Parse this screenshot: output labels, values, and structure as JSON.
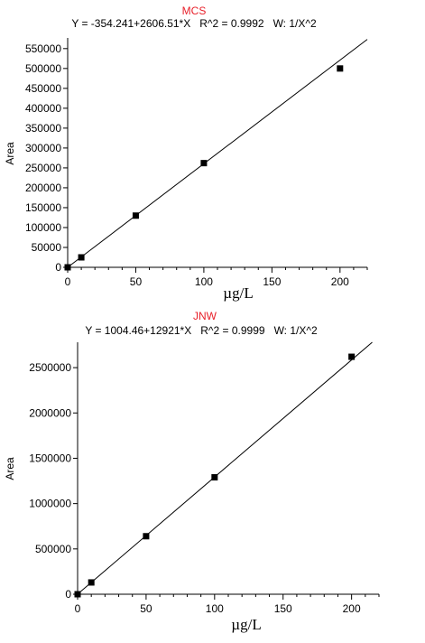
{
  "chart_data": [
    {
      "type": "scatter",
      "title": "MCS",
      "subtitle": "Y = -354.241+2606.51*X   R^2 = 0.9992   W: 1/X^2",
      "xlabel": "µg/L",
      "ylabel": "Area",
      "xlim": [
        0,
        220
      ],
      "ylim": [
        0,
        570000
      ],
      "xticks": [
        0,
        50,
        100,
        150,
        200
      ],
      "yticks": [
        0,
        50000,
        100000,
        150000,
        200000,
        250000,
        300000,
        350000,
        400000,
        450000,
        500000,
        550000
      ],
      "fit": {
        "intercept": -354.241,
        "slope": 2606.51
      },
      "points": [
        {
          "x": 0,
          "y": 0
        },
        {
          "x": 10,
          "y": 25000
        },
        {
          "x": 50,
          "y": 130000
        },
        {
          "x": 100,
          "y": 262000
        },
        {
          "x": 200,
          "y": 500000
        }
      ],
      "grid": false,
      "colors": {
        "title": "#e8202a",
        "line": "#000000",
        "marker": "#000000"
      }
    },
    {
      "type": "scatter",
      "title": "JNW",
      "subtitle": "Y = 1004.46+12921*X   R^2 = 0.9999   W: 1/X^2",
      "xlabel": "µg/L",
      "ylabel": "Area",
      "xlim": [
        0,
        220
      ],
      "ylim": [
        0,
        2750000
      ],
      "xticks": [
        0,
        50,
        100,
        150,
        200
      ],
      "yticks": [
        0,
        500000,
        1000000,
        1500000,
        2000000,
        2500000
      ],
      "fit": {
        "intercept": 1004.46,
        "slope": 12921
      },
      "points": [
        {
          "x": 0,
          "y": 0
        },
        {
          "x": 10,
          "y": 130000
        },
        {
          "x": 50,
          "y": 640000
        },
        {
          "x": 100,
          "y": 1290000
        },
        {
          "x": 200,
          "y": 2620000
        }
      ],
      "grid": false,
      "colors": {
        "title": "#e8202a",
        "line": "#000000",
        "marker": "#000000"
      }
    }
  ]
}
